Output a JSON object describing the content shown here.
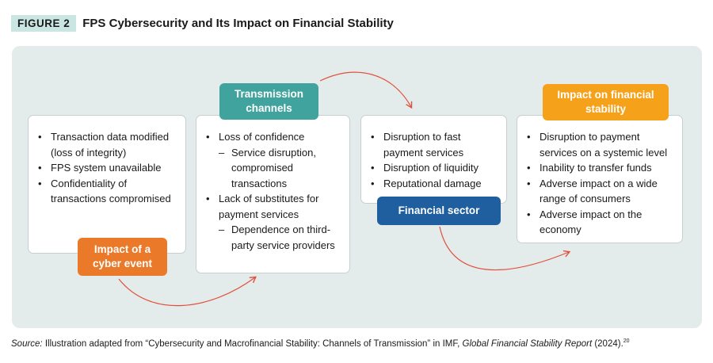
{
  "figure": {
    "label": "FIGURE 2",
    "title": "FPS Cybersecurity and Its Impact on Financial Stability"
  },
  "cards": {
    "cyber_event": {
      "tag": "Impact of a cyber event",
      "items": [
        "Transaction data modified (loss of integrity)",
        "FPS system unavailable",
        "Confidentiality of transactions compromised"
      ]
    },
    "transmission": {
      "tag": "Transmission channels",
      "item1": "Loss of confidence",
      "item1_sub": "Service disruption, compromised transactions",
      "item2": "Lack of substitutes for payment services",
      "item2_sub": "Dependence on third-party service providers"
    },
    "financial_sector": {
      "tag": "Financial sector",
      "items": [
        "Disruption to fast payment services",
        "Disruption of liquidity",
        "Reputational damage"
      ]
    },
    "stability": {
      "tag": "Impact on financial stability",
      "items": [
        "Disruption to payment services on a systemic level",
        "Inability to transfer funds",
        "Adverse impact on a wide range of consumers",
        "Adverse impact on the economy"
      ]
    }
  },
  "source": {
    "label": "Source:",
    "text_1": " Illustration adapted from “Cybersecurity and Macrofinancial Stability: Channels of Transmission” in IMF, ",
    "report": "Global Financial Stability Report",
    "text_2": " (2024).",
    "footnote": "20"
  },
  "colors": {
    "orange": "#ea7a2a",
    "teal": "#40a39e",
    "navy": "#1f5f9f",
    "amber": "#f6a11a",
    "arrow": "#e1503c",
    "panel": "#e4ebeb"
  }
}
